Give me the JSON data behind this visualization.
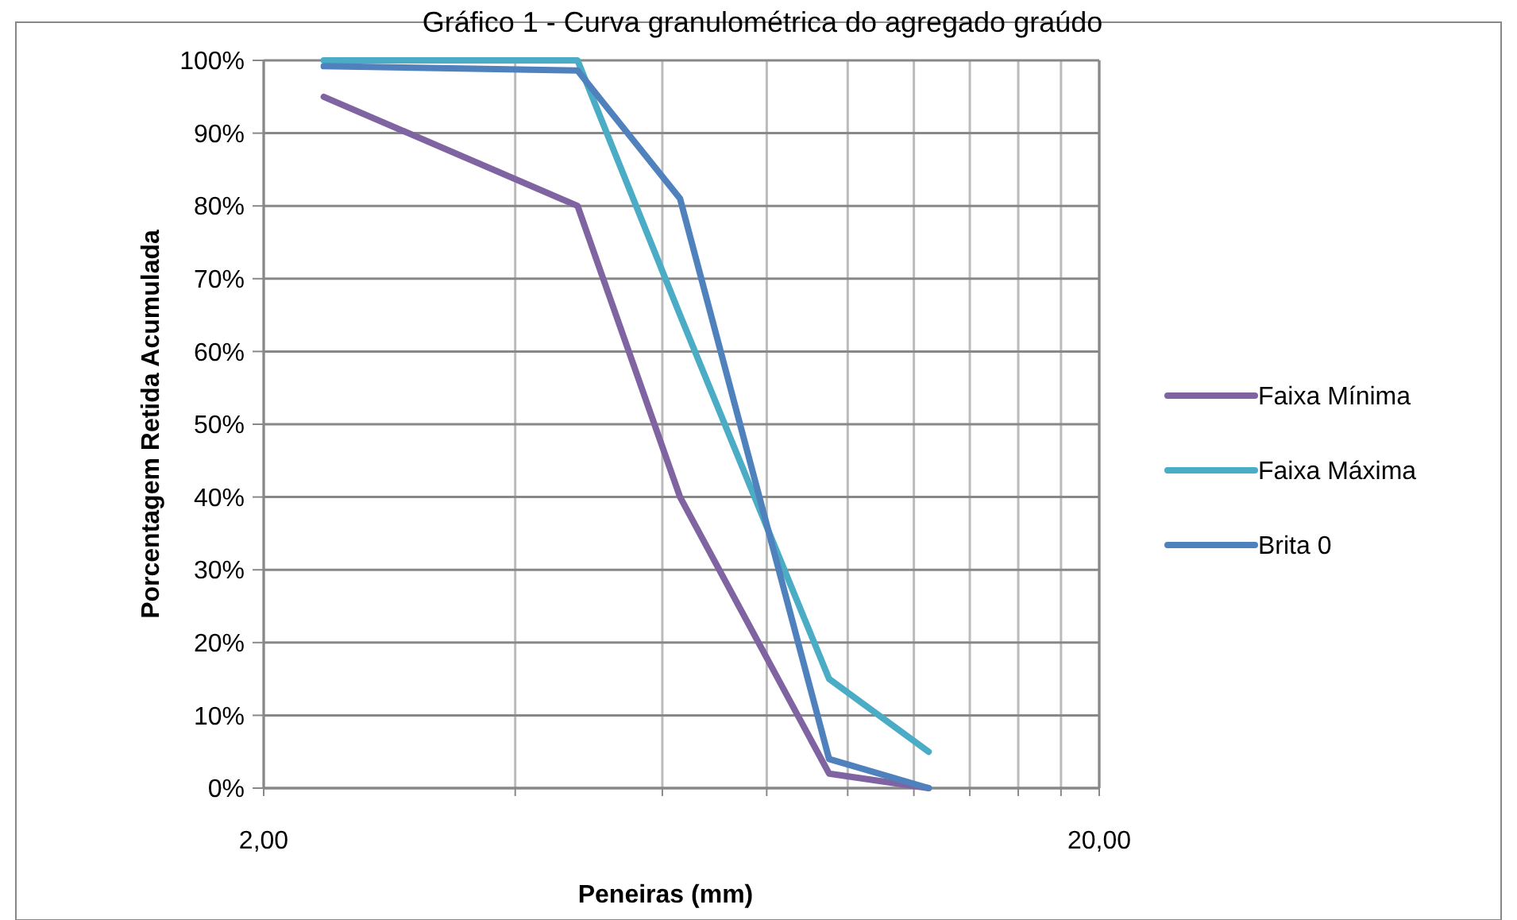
{
  "chart_data": {
    "type": "line",
    "title": "Gráfico 1 - Curva granulométrica do agregado graúdo",
    "xlabel": "Peneiras (mm)",
    "ylabel": "Porcentagem Retida Acumulada",
    "log": "x",
    "xlim": [
      2,
      20
    ],
    "ylim": [
      0,
      100
    ],
    "xticks": [
      {
        "value": 2,
        "label": "2,00"
      },
      {
        "value": 4,
        "label": null
      },
      {
        "value": 6,
        "label": null
      },
      {
        "value": 8,
        "label": null
      },
      {
        "value": 10,
        "label": null
      },
      {
        "value": 12,
        "label": null
      },
      {
        "value": 14,
        "label": null
      },
      {
        "value": 16,
        "label": null
      },
      {
        "value": 18,
        "label": null
      },
      {
        "value": 20,
        "label": "20,00"
      }
    ],
    "yticks": [
      {
        "value": 0,
        "label": "0%"
      },
      {
        "value": 10,
        "label": "10%"
      },
      {
        "value": 20,
        "label": "20%"
      },
      {
        "value": 30,
        "label": "30%"
      },
      {
        "value": 40,
        "label": "40%"
      },
      {
        "value": 50,
        "label": "50%"
      },
      {
        "value": 60,
        "label": "60%"
      },
      {
        "value": 70,
        "label": "70%"
      },
      {
        "value": 80,
        "label": "80%"
      },
      {
        "value": 90,
        "label": "90%"
      },
      {
        "value": 100,
        "label": "100%"
      }
    ],
    "grid": true,
    "legend": "right",
    "marker": "none",
    "line_style": "solid",
    "x": [
      2.36,
      4.75,
      6.3,
      9.5,
      12.5
    ],
    "series": [
      {
        "name": "Faixa Mínima",
        "color": "#8064a2",
        "values": [
          95,
          80,
          40,
          2,
          0
        ]
      },
      {
        "name": "Faixa Máxima",
        "color": "#4bacc6",
        "values": [
          100,
          100,
          65,
          15,
          5
        ]
      },
      {
        "name": "Brita 0",
        "color": "#4f81bd",
        "values": [
          99.2,
          98.6,
          81,
          4,
          0
        ]
      }
    ]
  }
}
